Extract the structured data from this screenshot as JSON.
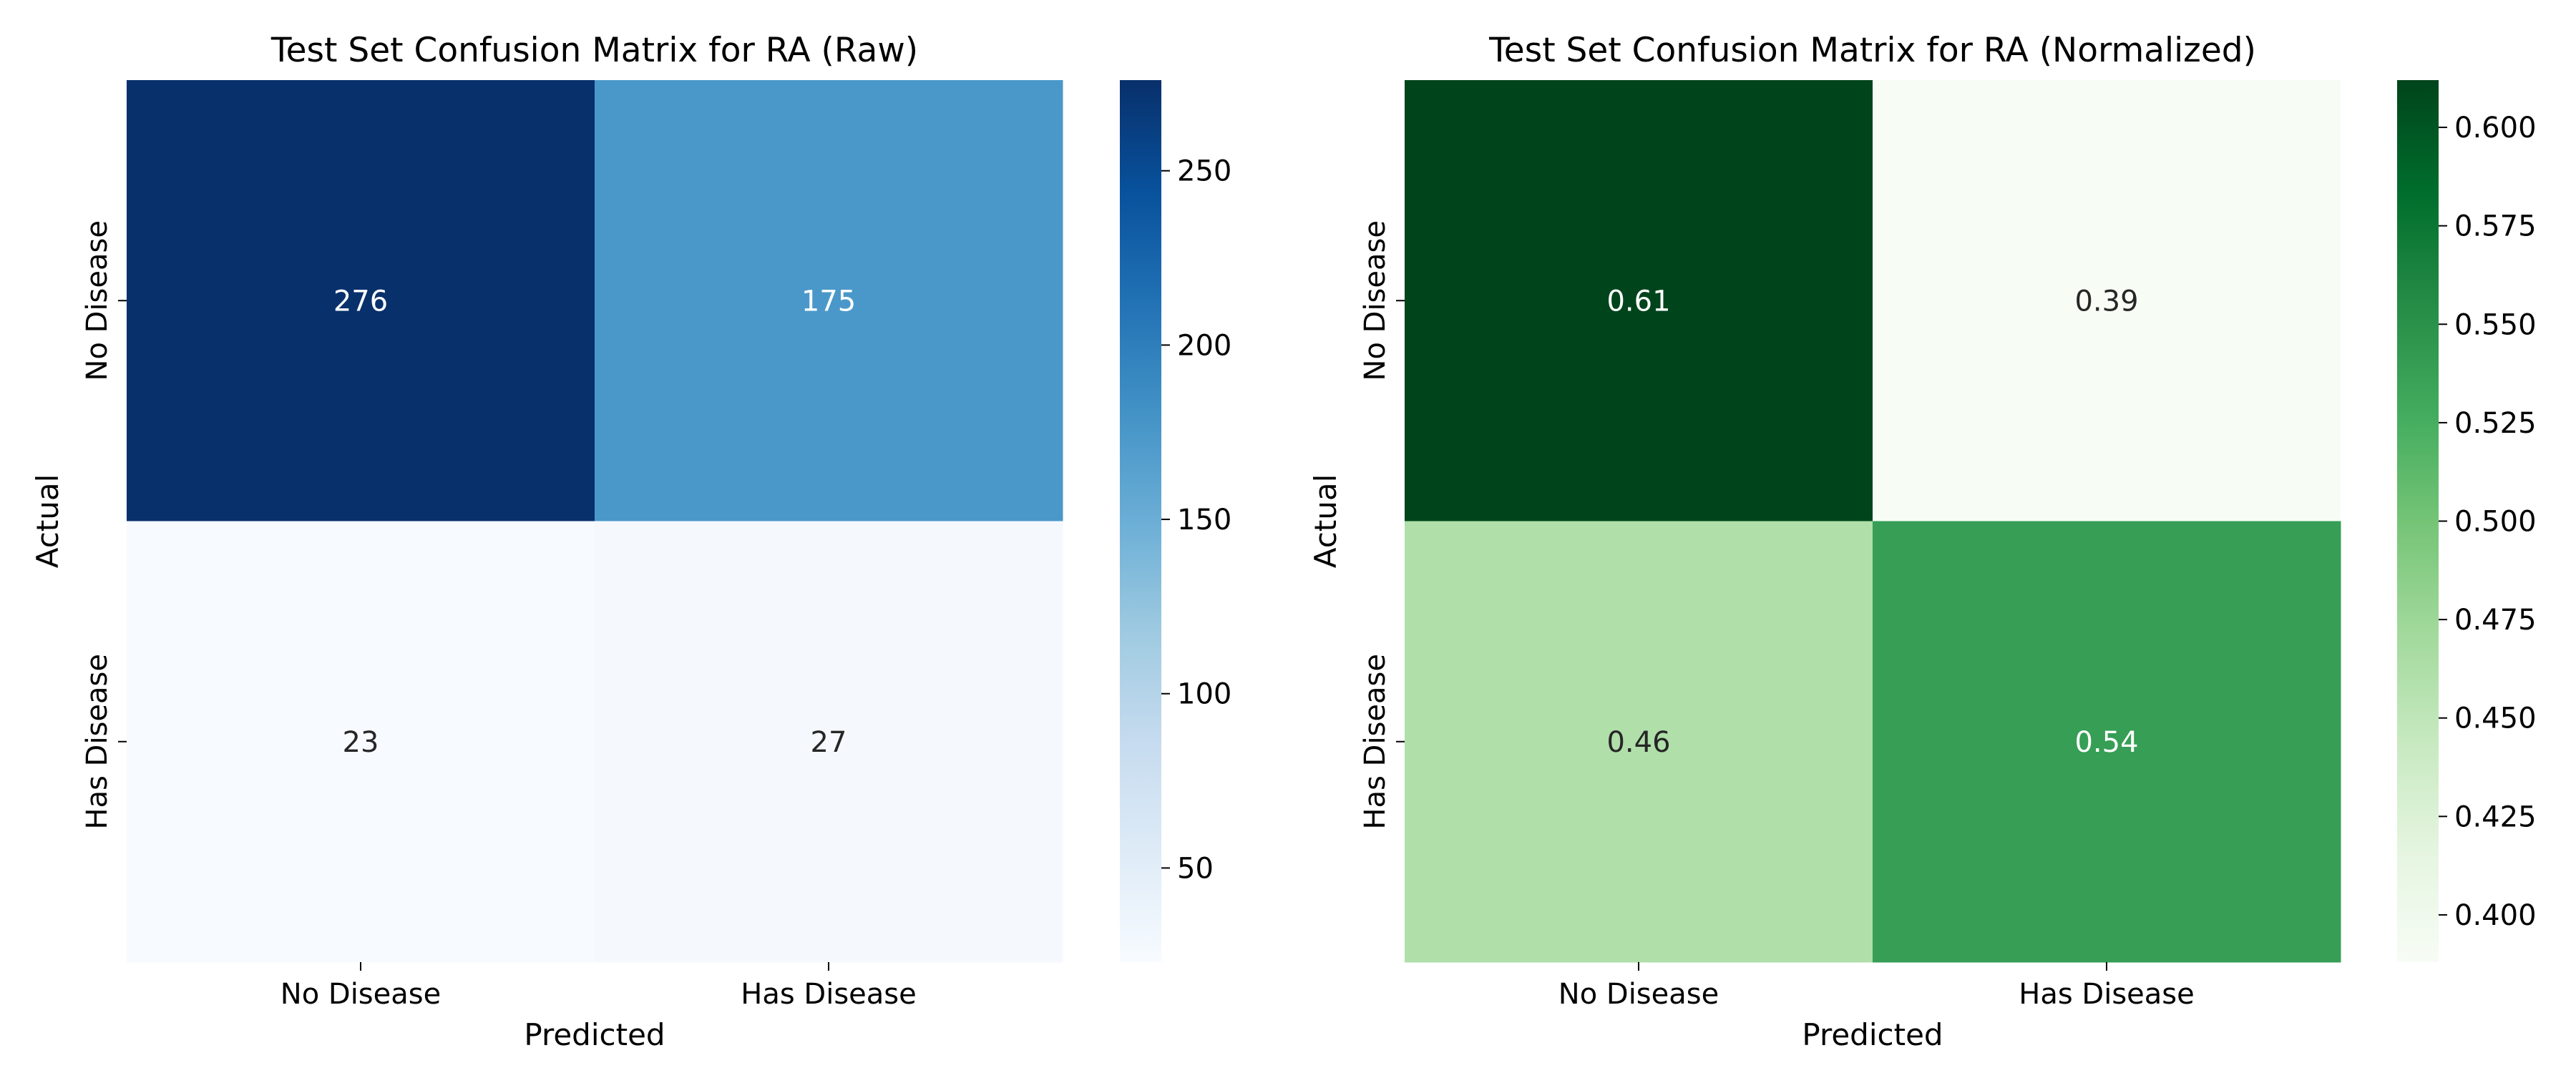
{
  "chart_data": [
    {
      "type": "heatmap",
      "title": "Test Set Confusion Matrix for RA (Raw)",
      "xlabel": "Predicted",
      "ylabel": "Actual",
      "x_categories": [
        "No Disease",
        "Has Disease"
      ],
      "y_categories": [
        "No Disease",
        "Has Disease"
      ],
      "values": [
        [
          276,
          175
        ],
        [
          23,
          27
        ]
      ],
      "annotations": [
        [
          "276",
          "175"
        ],
        [
          "23",
          "27"
        ]
      ],
      "colormap": "Blues",
      "colors": [
        [
          "#08306b",
          "#4a98c9"
        ],
        [
          "#f7fbff",
          "#f5f9fe"
        ]
      ],
      "annotation_colors": [
        [
          "#ffffff",
          "#ffffff"
        ],
        [
          "#262626",
          "#262626"
        ]
      ],
      "colorbar": {
        "range": [
          23,
          276
        ],
        "ticks": [
          50,
          100,
          150,
          200,
          250
        ],
        "tick_labels": [
          "50",
          "100",
          "150",
          "200",
          "250"
        ],
        "gradient": [
          "#f7fbff",
          "#deebf7",
          "#c6dbef",
          "#9ecae1",
          "#6baed6",
          "#4292c6",
          "#2171b5",
          "#08519c",
          "#08306b"
        ]
      }
    },
    {
      "type": "heatmap",
      "title": "Test Set Confusion Matrix for RA (Normalized)",
      "xlabel": "Predicted",
      "ylabel": "Actual",
      "x_categories": [
        "No Disease",
        "Has Disease"
      ],
      "y_categories": [
        "No Disease",
        "Has Disease"
      ],
      "values": [
        [
          0.61,
          0.39
        ],
        [
          0.46,
          0.54
        ]
      ],
      "annotations": [
        [
          "0.61",
          "0.39"
        ],
        [
          "0.46",
          "0.54"
        ]
      ],
      "colormap": "Greens",
      "colors": [
        [
          "#00441b",
          "#f7fcf5"
        ],
        [
          "#b0dfaa",
          "#369e55"
        ]
      ],
      "annotation_colors": [
        [
          "#ffffff",
          "#262626"
        ],
        [
          "#262626",
          "#ffffff"
        ]
      ],
      "colorbar": {
        "range": [
          0.388,
          0.612
        ],
        "ticks": [
          0.4,
          0.425,
          0.45,
          0.475,
          0.5,
          0.525,
          0.55,
          0.575,
          0.6
        ],
        "tick_labels": [
          "0.400",
          "0.425",
          "0.450",
          "0.475",
          "0.500",
          "0.525",
          "0.550",
          "0.575",
          "0.600"
        ],
        "gradient": [
          "#f7fcf5",
          "#e5f5e0",
          "#c7e9c0",
          "#a1d99b",
          "#74c476",
          "#41ab5d",
          "#238b45",
          "#006d2c",
          "#00441b"
        ]
      }
    }
  ]
}
